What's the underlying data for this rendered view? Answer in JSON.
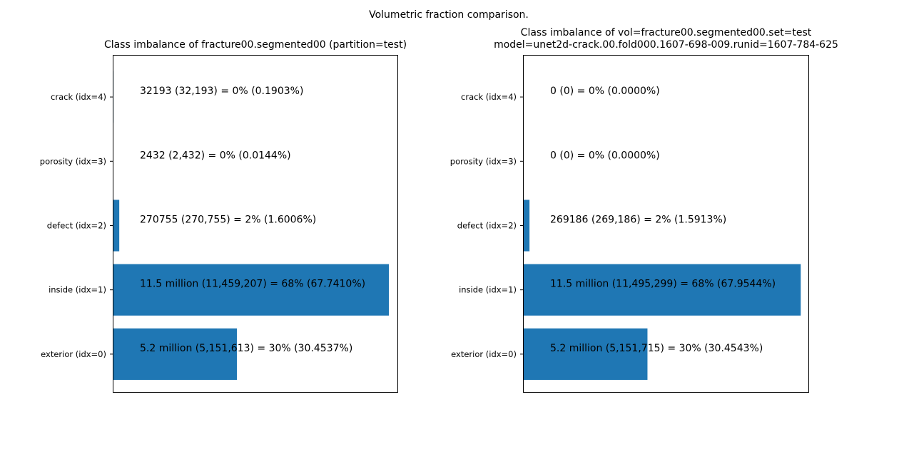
{
  "figure": {
    "suptitle": "Volumetric fraction comparison."
  },
  "colors": {
    "bar": "#1f77b4",
    "axes": "#000000",
    "text": "#000000",
    "background": "#ffffff"
  },
  "chart_data": [
    {
      "type": "bar",
      "orientation": "horizontal",
      "title_lines": [
        "Class imbalance of fracture00.segmented00 (partition=test)"
      ],
      "categories": [
        "exterior (idx=0)",
        "inside (idx=1)",
        "defect (idx=2)",
        "porosity (idx=3)",
        "crack (idx=4)"
      ],
      "values": [
        30.4537,
        67.741,
        1.6006,
        0.0144,
        0.1903
      ],
      "bar_labels": [
        "5.2 million (5,151,613) = 30% (30.4537%)",
        "11.5 million (11,459,207) = 68% (67.7410%)",
        "270755 (270,755) = 2% (1.6006%)",
        "2432 (2,432) = 0% (0.0144%)",
        "32193 (32,193) = 0% (0.1903%)"
      ],
      "xlim": [
        0,
        70
      ],
      "x_ticks_visible": false,
      "grid": false,
      "legend": "none"
    },
    {
      "type": "bar",
      "orientation": "horizontal",
      "title_lines": [
        "Class imbalance of vol=fracture00.segmented00.set=test",
        "model=unet2d-crack.00.fold000.1607-698-009.runid=1607-784-625"
      ],
      "categories": [
        "exterior (idx=0)",
        "inside (idx=1)",
        "defect (idx=2)",
        "porosity (idx=3)",
        "crack (idx=4)"
      ],
      "values": [
        30.4543,
        67.9544,
        1.5913,
        0.0,
        0.0
      ],
      "bar_labels": [
        "5.2 million (5,151,715) = 30% (30.4543%)",
        "11.5 million (11,495,299) = 68% (67.9544%)",
        "269186 (269,186) = 2% (1.5913%)",
        "0 (0) = 0% (0.0000%)",
        "0 (0) = 0% (0.0000%)"
      ],
      "xlim": [
        0,
        70
      ],
      "x_ticks_visible": false,
      "grid": false,
      "legend": "none"
    }
  ]
}
